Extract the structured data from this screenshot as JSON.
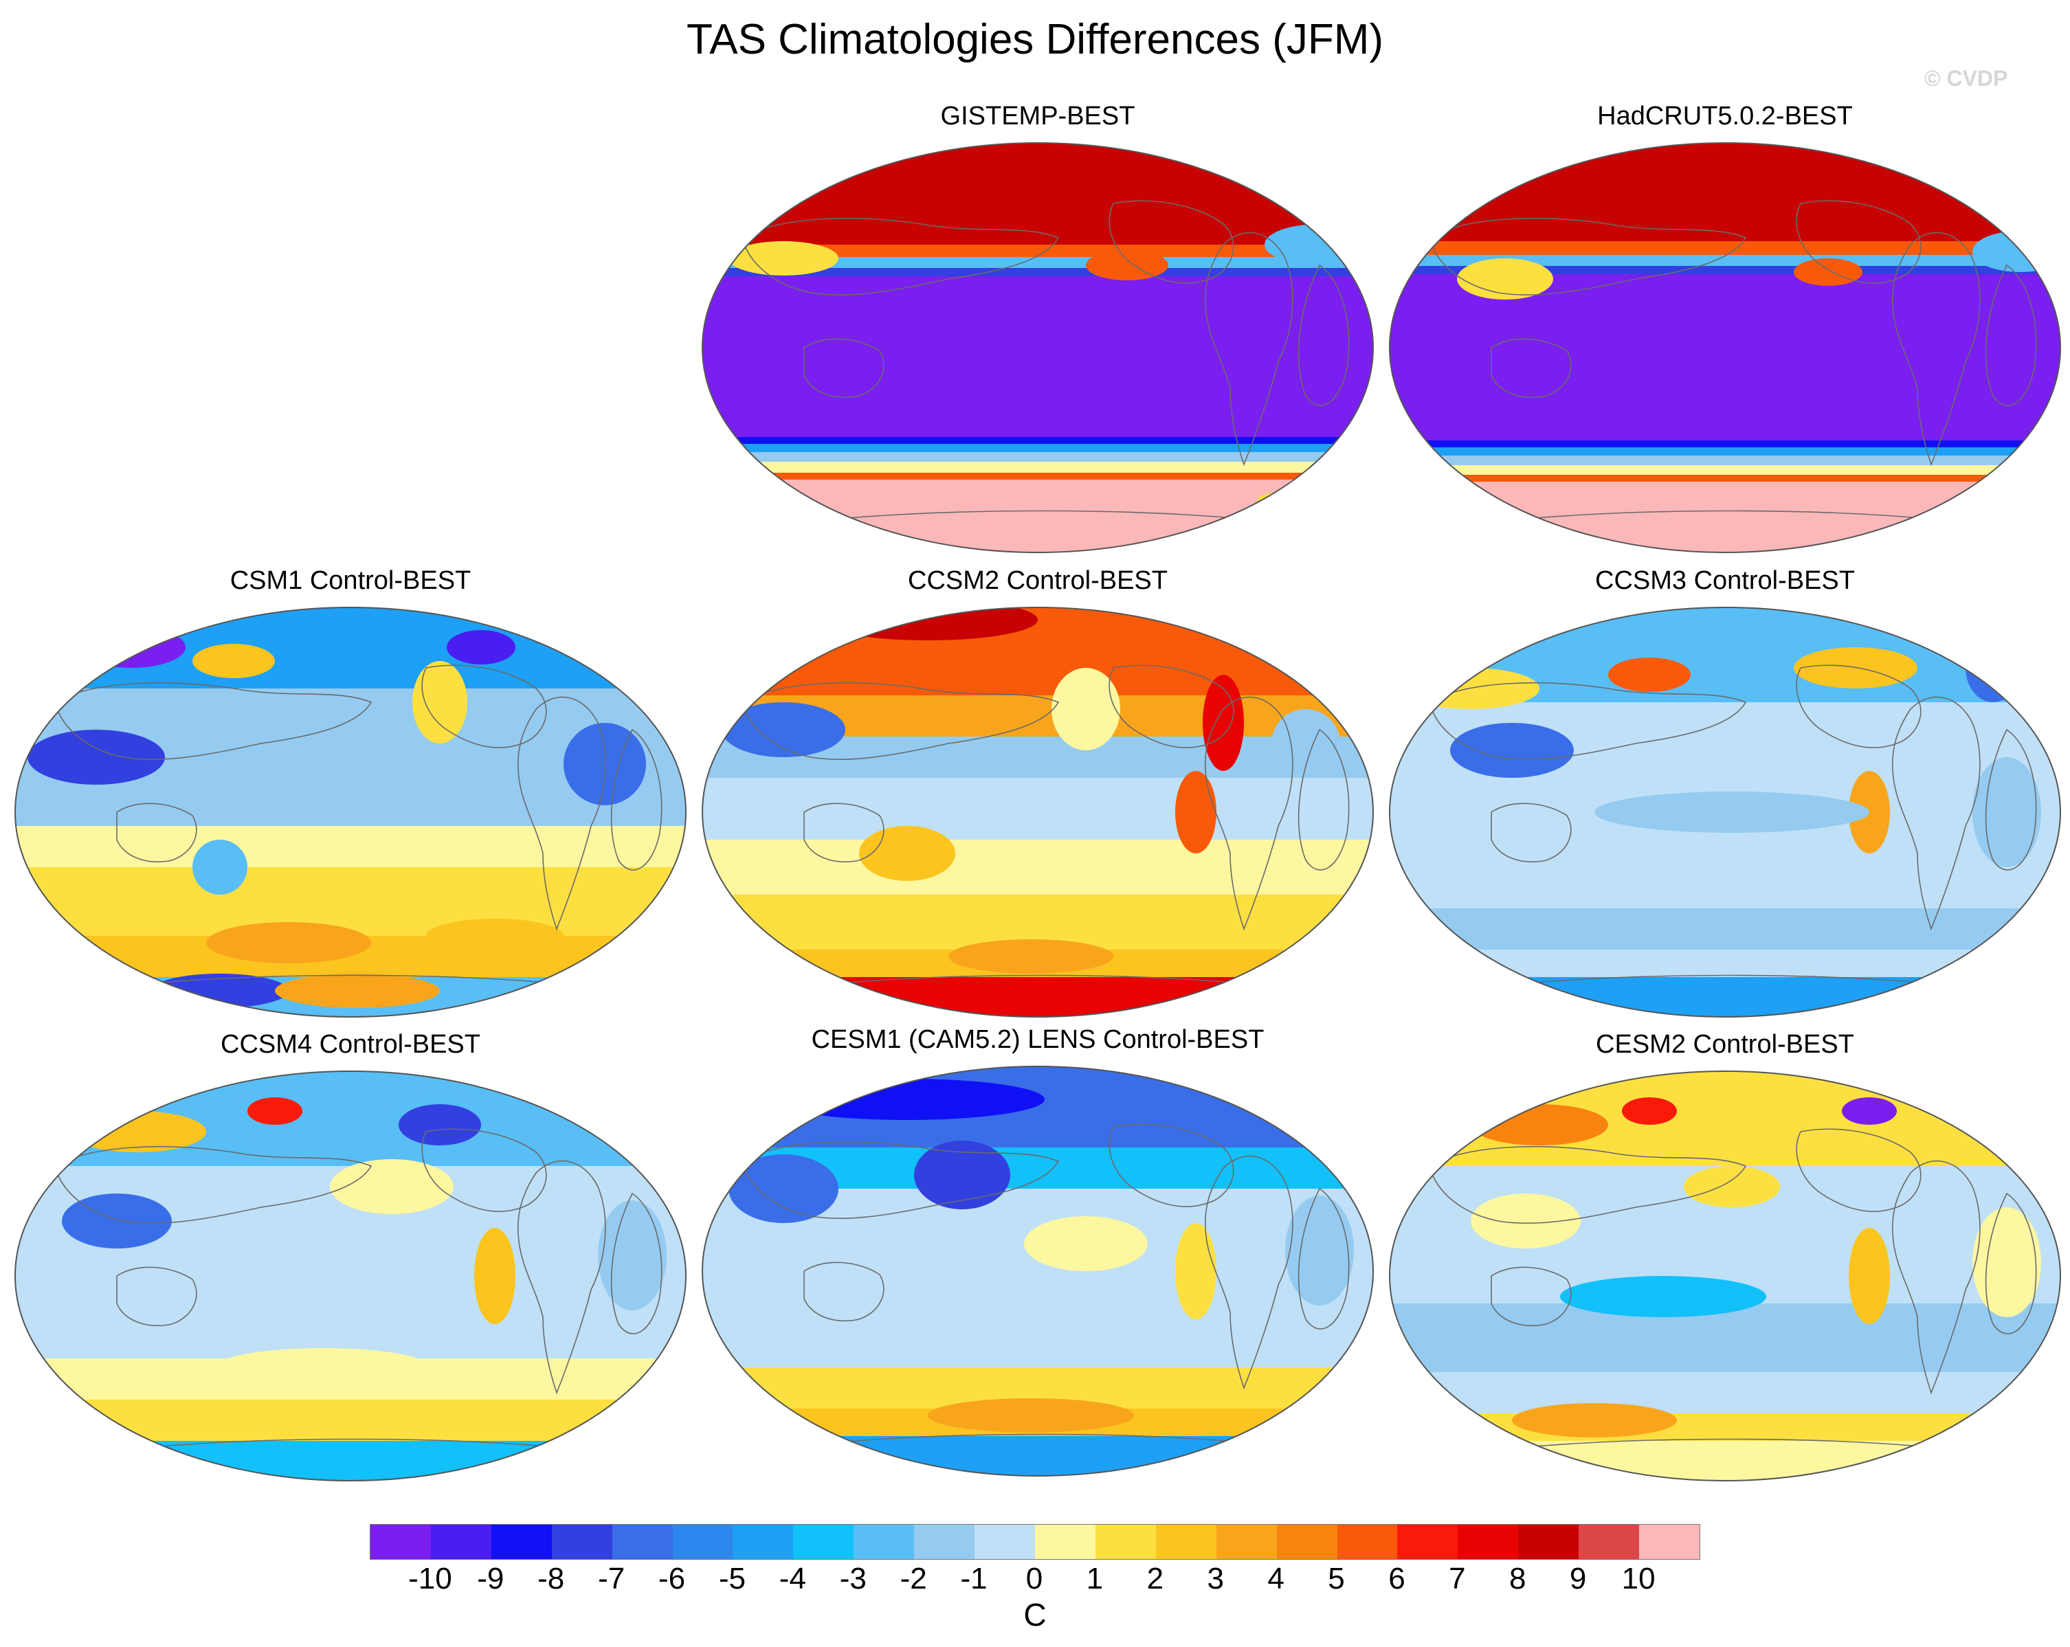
{
  "figure": {
    "title": "TAS Climatologies Differences (JFM)",
    "credit": "© CVDP"
  },
  "panels": [
    {
      "title": "GISTEMP-BEST",
      "pattern": "obs-gistemp"
    },
    {
      "title": "HadCRUT5.0.2-BEST",
      "pattern": "obs-hadcrut"
    },
    {
      "title": "CSM1 Control-BEST",
      "pattern": "csm1"
    },
    {
      "title": "CCSM2 Control-BEST",
      "pattern": "ccsm2"
    },
    {
      "title": "CCSM3 Control-BEST",
      "pattern": "ccsm3"
    },
    {
      "title": "CCSM4 Control-BEST",
      "pattern": "ccsm4"
    },
    {
      "title": "CESM1 (CAM5.2) LENS Control-BEST",
      "pattern": "cesm1"
    },
    {
      "title": "CESM2 Control-BEST",
      "pattern": "cesm2"
    }
  ],
  "colorbar": {
    "unit": "C",
    "labels": [
      "-10",
      "-9",
      "-8",
      "-7",
      "-6",
      "-5",
      "-4",
      "-3",
      "-2",
      "-1",
      "0",
      "1",
      "2",
      "3",
      "4",
      "5",
      "6",
      "7",
      "8",
      "9",
      "10"
    ],
    "colors": [
      "#7a1ff0",
      "#4a1ef0",
      "#1010f5",
      "#3240e0",
      "#3a6ee8",
      "#2c86ee",
      "#1da0f5",
      "#12c0fa",
      "#58bef5",
      "#95cbf0",
      "#bfe0f7",
      "#fdf7a0",
      "#fde040",
      "#fbc41e",
      "#f8a51c",
      "#f8830e",
      "#f85a0a",
      "#fa1a0a",
      "#e80202",
      "#c80202",
      "#dc4646",
      "#fbb8b8"
    ]
  }
}
